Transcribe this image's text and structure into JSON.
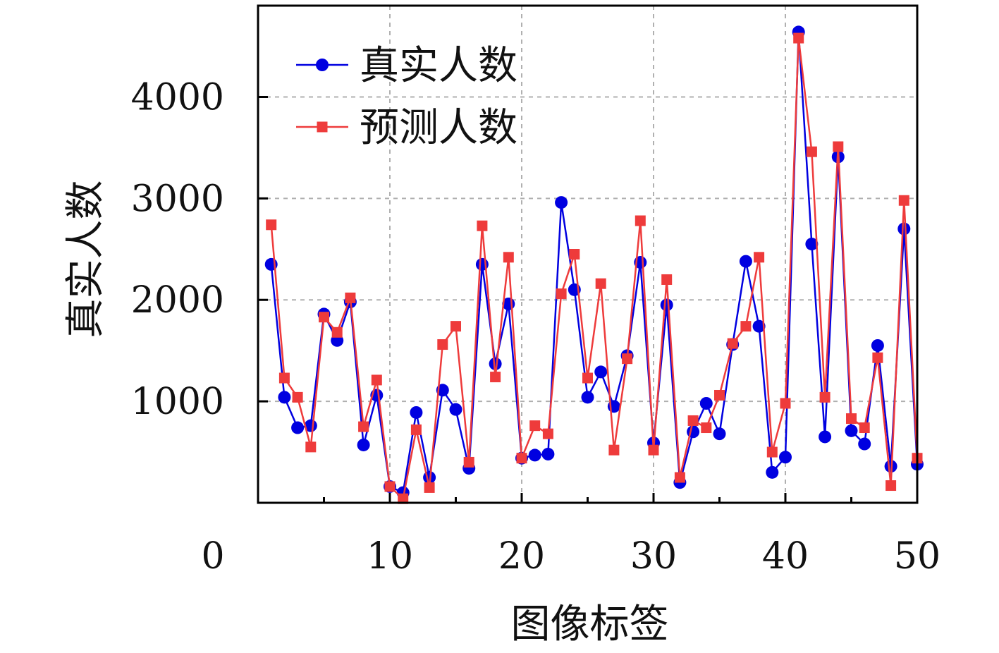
{
  "chart_data": {
    "type": "line",
    "title": "",
    "xlabel": "图像标签",
    "ylabel": "真实人数",
    "xlim": [
      0,
      50
    ],
    "ylim": [
      0,
      4900
    ],
    "x_ticks": [
      0,
      10,
      20,
      30,
      40,
      50
    ],
    "x_tick_labels": [
      "0",
      "10",
      "20",
      "30",
      "40",
      "50"
    ],
    "y_ticks": [
      1000,
      2000,
      3000,
      4000
    ],
    "y_tick_labels": [
      "1000",
      "2000",
      "3000",
      "4000"
    ],
    "grid": true,
    "legend_position": "top-left",
    "x": [
      1,
      2,
      3,
      4,
      5,
      6,
      7,
      8,
      9,
      10,
      11,
      12,
      13,
      14,
      15,
      16,
      17,
      18,
      19,
      20,
      21,
      22,
      23,
      24,
      25,
      26,
      27,
      28,
      29,
      30,
      31,
      32,
      33,
      34,
      35,
      36,
      37,
      38,
      39,
      40,
      41,
      42,
      43,
      44,
      45,
      46,
      47,
      48,
      49,
      50
    ],
    "series": [
      {
        "name": "真实人数",
        "color": "#0000e0",
        "marker": "circle",
        "values": [
          2350,
          1040,
          740,
          760,
          1860,
          1600,
          1980,
          570,
          1060,
          160,
          100,
          890,
          250,
          1110,
          920,
          340,
          2350,
          1370,
          1960,
          440,
          470,
          480,
          2960,
          2100,
          1040,
          1290,
          950,
          1450,
          2370,
          590,
          1950,
          200,
          700,
          980,
          680,
          1560,
          2380,
          1740,
          300,
          450,
          4640,
          2550,
          650,
          3410,
          710,
          580,
          1550,
          360,
          2700,
          380
        ]
      },
      {
        "name": "预测人数",
        "color": "#ee3b3b",
        "marker": "square",
        "values": [
          2740,
          1230,
          1040,
          550,
          1830,
          1680,
          2020,
          750,
          1210,
          160,
          40,
          720,
          150,
          1560,
          1740,
          400,
          2730,
          1240,
          2420,
          440,
          760,
          680,
          2060,
          2450,
          1230,
          2160,
          520,
          1420,
          2780,
          520,
          2200,
          250,
          810,
          740,
          1060,
          1570,
          1740,
          2420,
          500,
          980,
          4580,
          3460,
          1040,
          3510,
          830,
          740,
          1430,
          170,
          2980,
          440
        ]
      }
    ]
  }
}
